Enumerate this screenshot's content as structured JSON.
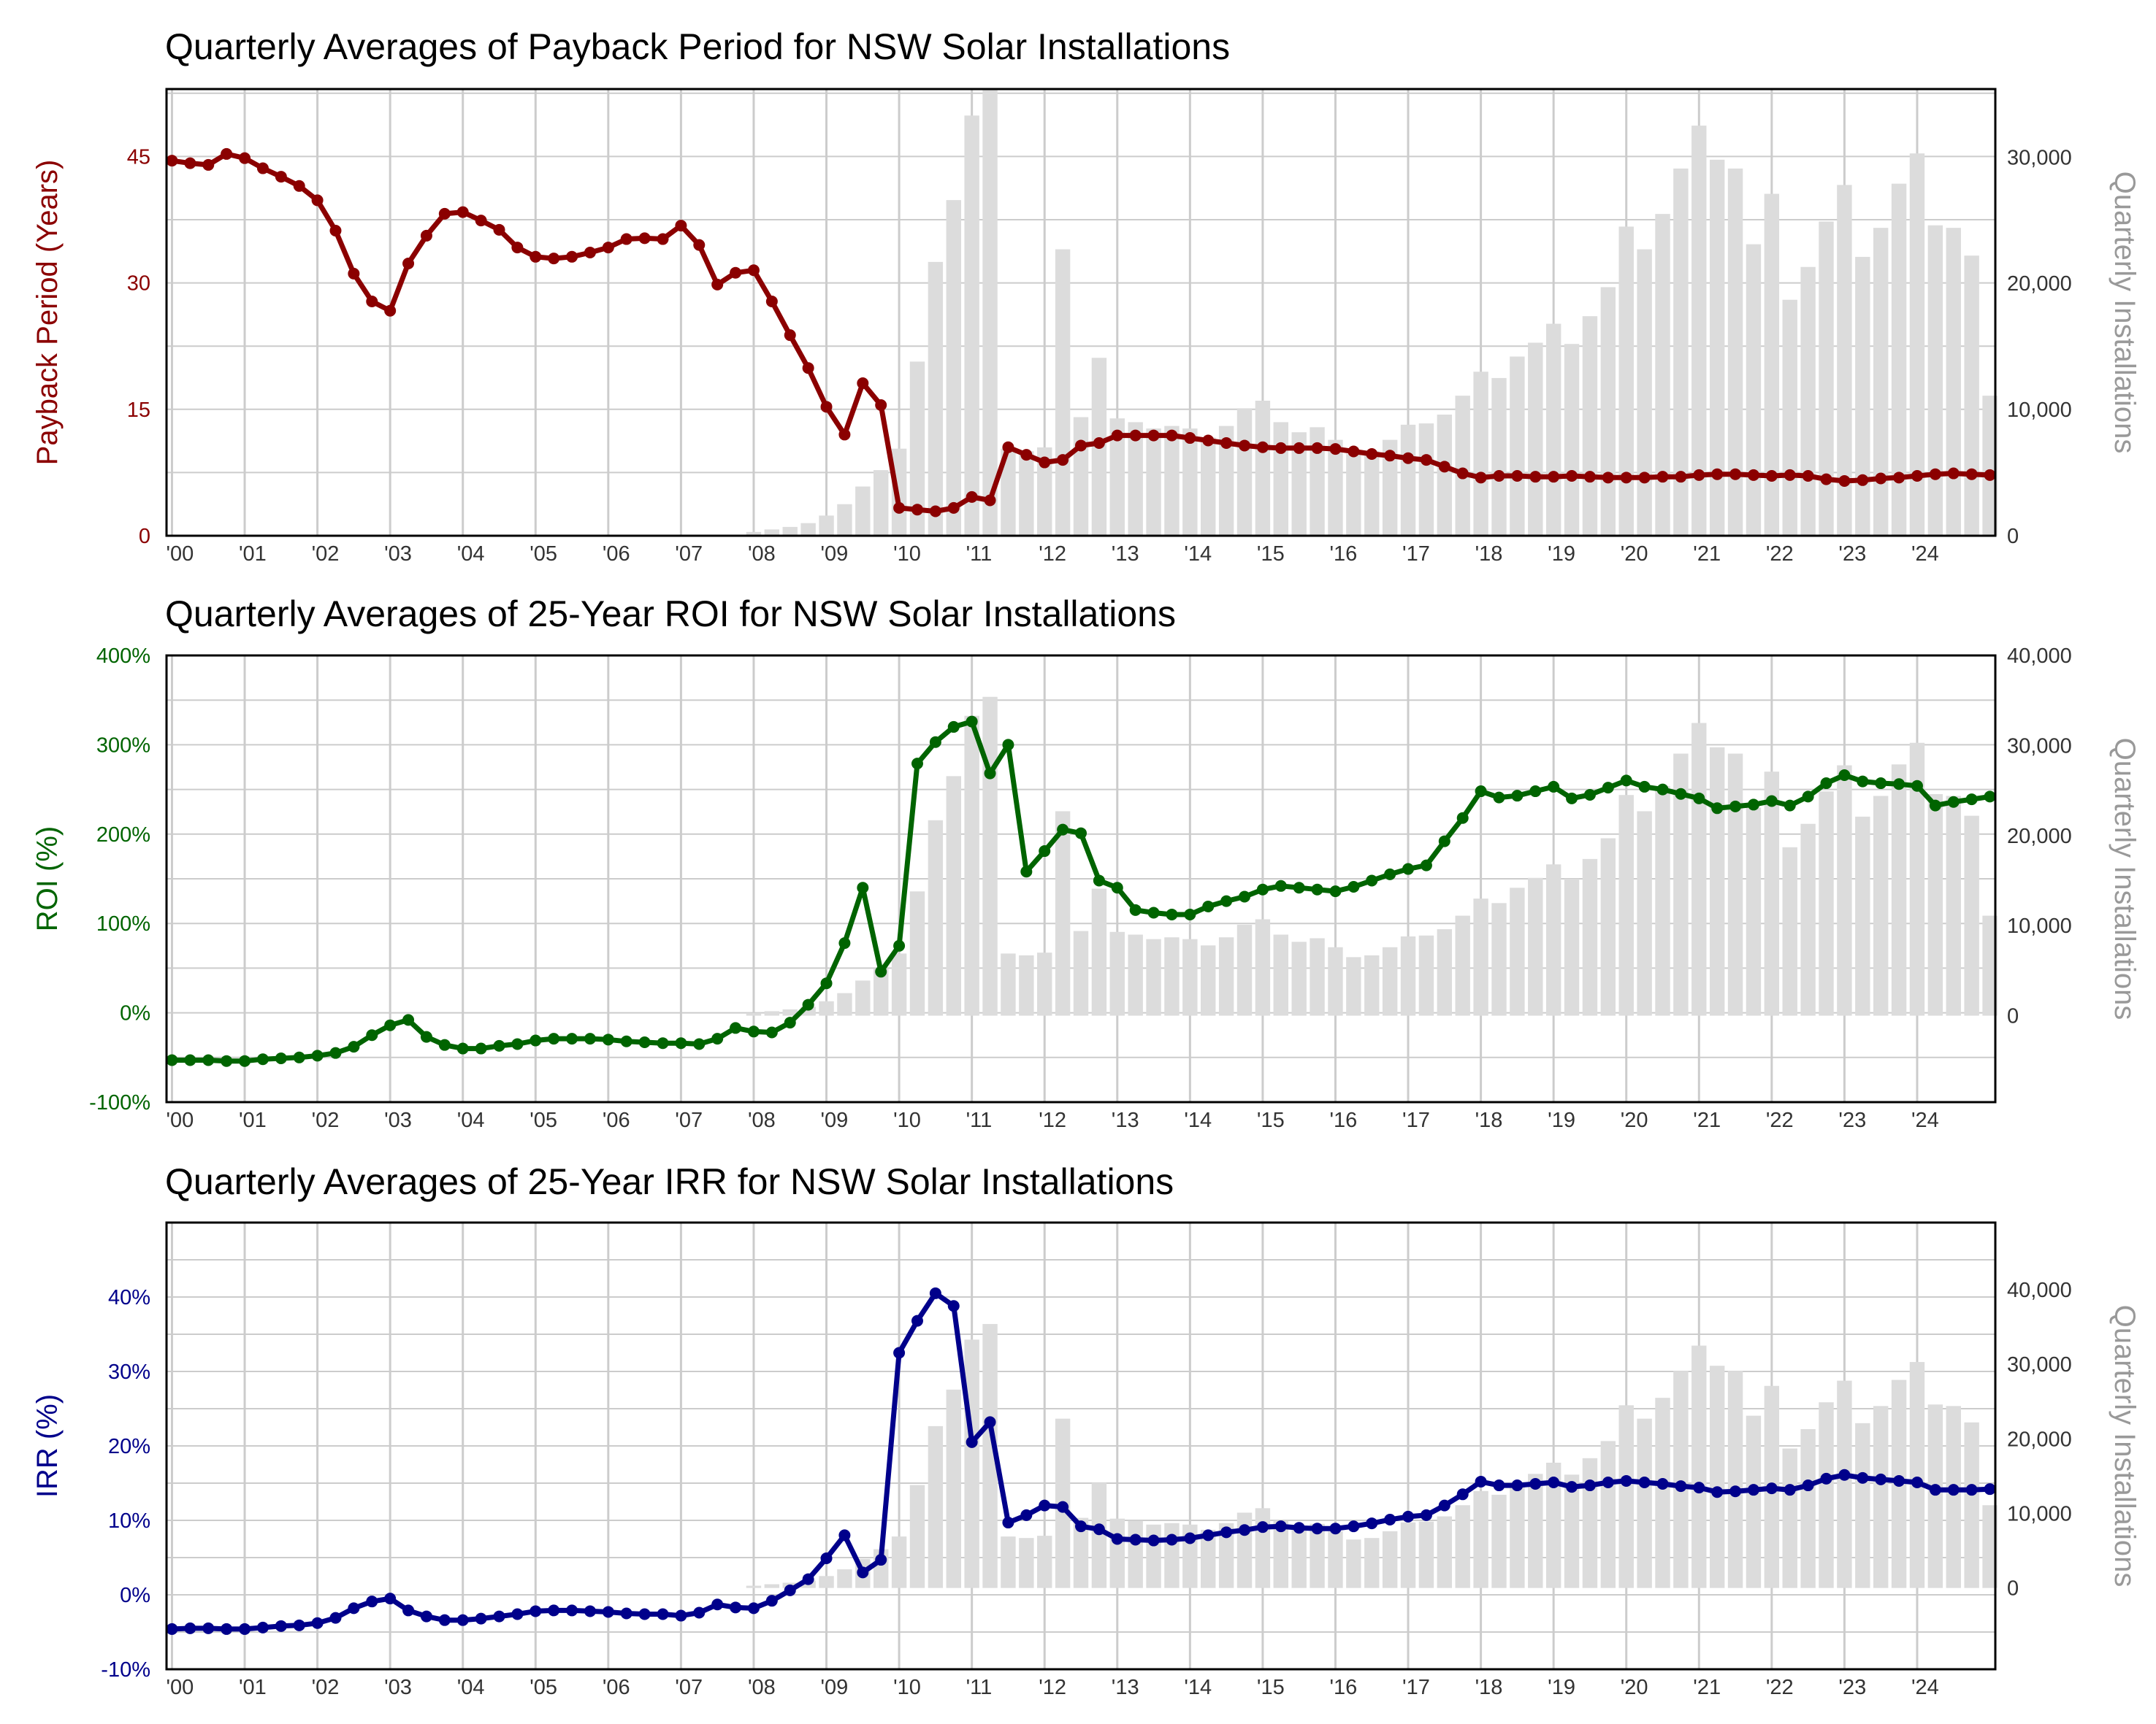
{
  "x_tick_labels": [
    "'00",
    "'01",
    "'02",
    "'03",
    "'04",
    "'05",
    "'06",
    "'07",
    "'08",
    "'09",
    "'10",
    "'11",
    "'12",
    "'13",
    "'14",
    "'15",
    "'16",
    "'17",
    "'18",
    "'19",
    "'20",
    "'21",
    "'22",
    "'23",
    "'24"
  ],
  "chart_data": [
    {
      "type": "line",
      "title": "Quarterly Averages of Payback Period for NSW Solar Installations",
      "ylabel": "Payback Period (Years)",
      "ylabel_right": "Quarterly Installations",
      "ylim": [
        0,
        53
      ],
      "y2lim": [
        0,
        35400
      ],
      "yticks": [
        0,
        15,
        30,
        45
      ],
      "ytick_labels": [
        "0",
        "15",
        "30",
        "45"
      ],
      "y2ticks": [
        0,
        10000,
        20000,
        30000
      ],
      "y2tick_labels": [
        "0",
        "10,000",
        "20,000",
        "30,000"
      ],
      "grid": true,
      "line_color": "#8b0000",
      "bar_color": "#dcdcdc",
      "series": [
        {
          "name": "Payback Period (Years)",
          "values": [
            44.5,
            44.2,
            44,
            45.3,
            44.8,
            43.6,
            42.6,
            41.5,
            39.8,
            36.2,
            31.1,
            27.8,
            26.7,
            32.3,
            35.6,
            38.2,
            38.4,
            37.4,
            36.3,
            34.2,
            33.1,
            32.9,
            33.1,
            33.6,
            34.2,
            35.2,
            35.3,
            35.2,
            36.8,
            34.5,
            29.8,
            31.2,
            31.5,
            27.8,
            23.8,
            19.9,
            15.3,
            12,
            18.1,
            15.5,
            3.3,
            3.1,
            2.9,
            3.3,
            4.6,
            4.2,
            10.5,
            9.6,
            8.7,
            9,
            10.7,
            11,
            11.9,
            11.9,
            11.9,
            11.9,
            11.6,
            11.3,
            11,
            10.7,
            10.5,
            10.4,
            10.4,
            10.4,
            10.3,
            10,
            9.7,
            9.5,
            9.2,
            9,
            8.2,
            7.4,
            6.9,
            7.1,
            7.1,
            7,
            7,
            7.1,
            7,
            6.9,
            6.9,
            6.9,
            7,
            7,
            7.2,
            7.3,
            7.3,
            7.2,
            7.1,
            7.2,
            7.1,
            6.7,
            6.5,
            6.6,
            6.8,
            6.9,
            7.1,
            7.3,
            7.4,
            7.3,
            7.2
          ]
        },
        {
          "name": "Quarterly Installations",
          "values": [
            0,
            0,
            0,
            0,
            0,
            0,
            0,
            0,
            0,
            0,
            0,
            0,
            0,
            0,
            0,
            0,
            0,
            0,
            0,
            0,
            0,
            0,
            0,
            0,
            0,
            0,
            0,
            0,
            0,
            0,
            0,
            0,
            300,
            500,
            700,
            1000,
            1600,
            2500,
            3900,
            5200,
            6900,
            13800,
            21700,
            26600,
            33300,
            35400,
            6900,
            6700,
            7000,
            22700,
            9400,
            14100,
            9300,
            9000,
            8500,
            8700,
            8500,
            7800,
            8700,
            10100,
            10700,
            9000,
            8200,
            8600,
            7600,
            6500,
            6700,
            7600,
            8800,
            8900,
            9600,
            11100,
            13000,
            12500,
            14200,
            15300,
            16800,
            15200,
            17400,
            19700,
            24500,
            22700,
            25500,
            29100,
            32500,
            29800,
            29100,
            23100,
            27100,
            18700,
            21300,
            24900,
            27800,
            22100,
            24400,
            27900,
            30300,
            24600,
            24400,
            22200,
            11100
          ]
        }
      ]
    },
    {
      "type": "line",
      "title": "Quarterly Averages of 25-Year ROI for NSW Solar Installations",
      "ylabel": "ROI (%)",
      "ylabel_right": "Quarterly Installations",
      "ylim": [
        -100,
        400
      ],
      "y2lim": [
        -9600,
        40000
      ],
      "yticks": [
        -100,
        0,
        100,
        200,
        300,
        400
      ],
      "ytick_labels": [
        "-100%",
        "0%",
        "100%",
        "200%",
        "300%",
        "400%"
      ],
      "y2ticks": [
        0,
        10000,
        20000,
        30000,
        40000
      ],
      "y2tick_labels": [
        "0",
        "10,000",
        "20,000",
        "30,000",
        "40,000"
      ],
      "grid": true,
      "line_color": "#006400",
      "bar_color": "#dcdcdc",
      "series": [
        {
          "name": "ROI (%)",
          "values": [
            -53,
            -53,
            -53,
            -54,
            -54,
            -52,
            -51,
            -50,
            -48,
            -45,
            -38,
            -25,
            -14,
            -8,
            -27,
            -36,
            -40,
            -40,
            -37,
            -35,
            -31,
            -29,
            -29,
            -29,
            -30,
            -32,
            -33,
            -34,
            -34,
            -35,
            -29,
            -17,
            -21,
            -22,
            -11,
            9,
            33,
            78,
            140,
            46,
            75,
            279,
            303,
            320,
            326,
            268,
            300,
            158,
            181,
            205,
            201,
            148,
            140,
            115,
            112,
            110,
            110,
            119,
            125,
            130,
            138,
            142,
            140,
            138,
            136,
            141,
            148,
            155,
            161,
            165,
            192,
            218,
            248,
            241,
            243,
            248,
            253,
            240,
            244,
            252,
            260,
            253,
            250,
            245,
            240,
            229,
            231,
            233,
            237,
            232,
            242,
            257,
            266,
            259,
            257,
            256,
            254,
            232,
            236,
            239,
            242
          ]
        },
        {
          "name": "Quarterly Installations",
          "values": [
            0,
            0,
            0,
            0,
            0,
            0,
            0,
            0,
            0,
            0,
            0,
            0,
            0,
            0,
            0,
            0,
            0,
            0,
            0,
            0,
            0,
            0,
            0,
            0,
            0,
            0,
            0,
            0,
            0,
            0,
            0,
            0,
            300,
            500,
            700,
            1000,
            1600,
            2500,
            3900,
            5200,
            6900,
            13800,
            21700,
            26600,
            33300,
            35400,
            6900,
            6700,
            7000,
            22700,
            9400,
            14100,
            9300,
            9000,
            8500,
            8700,
            8500,
            7800,
            8700,
            10100,
            10700,
            9000,
            8200,
            8600,
            7600,
            6500,
            6700,
            7600,
            8800,
            8900,
            9600,
            11100,
            13000,
            12500,
            14200,
            15300,
            16800,
            15200,
            17400,
            19700,
            24500,
            22700,
            25500,
            29100,
            32500,
            29800,
            29100,
            23100,
            27100,
            18700,
            21300,
            24900,
            27800,
            22100,
            24400,
            27900,
            30300,
            24600,
            24400,
            22200,
            11100
          ]
        }
      ]
    },
    {
      "type": "line",
      "title": "Quarterly Averages of 25-Year IRR for NSW Solar Installations",
      "ylabel": "IRR (%)",
      "ylabel_right": "Quarterly Installations",
      "ylim": [
        -10,
        50
      ],
      "y2lim": [
        -10900,
        49000
      ],
      "yticks": [
        -10,
        0,
        10,
        20,
        30,
        40
      ],
      "ytick_labels": [
        "-10%",
        "0%",
        "10%",
        "20%",
        "30%",
        "40%"
      ],
      "y2ticks": [
        0,
        10000,
        20000,
        30000,
        40000
      ],
      "y2tick_labels": [
        "0",
        "10,000",
        "20,000",
        "30,000",
        "40,000"
      ],
      "grid": true,
      "line_color": "#00008b",
      "bar_color": "#dcdcdc",
      "series": [
        {
          "name": "IRR (%)",
          "values": [
            -4.6,
            -4.5,
            -4.5,
            -4.6,
            -4.6,
            -4.4,
            -4.2,
            -4.1,
            -3.8,
            -3.1,
            -1.8,
            -0.9,
            -0.5,
            -2.1,
            -2.9,
            -3.4,
            -3.4,
            -3.2,
            -2.9,
            -2.6,
            -2.2,
            -2.1,
            -2.1,
            -2.2,
            -2.3,
            -2.5,
            -2.6,
            -2.6,
            -2.8,
            -2.4,
            -1.3,
            -1.7,
            -1.8,
            -0.8,
            0.6,
            2.1,
            4.9,
            8,
            3,
            4.7,
            32.5,
            36.8,
            40.5,
            38.8,
            20.5,
            23.2,
            9.7,
            10.7,
            12,
            11.8,
            9.2,
            8.8,
            7.5,
            7.4,
            7.3,
            7.4,
            7.6,
            8,
            8.4,
            8.7,
            9.1,
            9.2,
            9,
            8.9,
            8.9,
            9.2,
            9.6,
            10.1,
            10.5,
            10.7,
            12,
            13.5,
            15.2,
            14.7,
            14.7,
            14.9,
            15.1,
            14.5,
            14.7,
            15.1,
            15.3,
            15.1,
            14.9,
            14.6,
            14.4,
            13.8,
            13.9,
            14.1,
            14.3,
            14.1,
            14.7,
            15.6,
            16.1,
            15.7,
            15.5,
            15.3,
            15.1,
            14.1,
            14.1,
            14.1,
            14.2
          ]
        },
        {
          "name": "Quarterly Installations",
          "values": [
            0,
            0,
            0,
            0,
            0,
            0,
            0,
            0,
            0,
            0,
            0,
            0,
            0,
            0,
            0,
            0,
            0,
            0,
            0,
            0,
            0,
            0,
            0,
            0,
            0,
            0,
            0,
            0,
            0,
            0,
            0,
            0,
            300,
            500,
            700,
            1000,
            1600,
            2500,
            3900,
            5200,
            6900,
            13800,
            21700,
            26600,
            33300,
            35400,
            6900,
            6700,
            7000,
            22700,
            9400,
            14100,
            9300,
            9000,
            8500,
            8700,
            8500,
            7800,
            8700,
            10100,
            10700,
            9000,
            8200,
            8600,
            7600,
            6500,
            6700,
            7600,
            8800,
            8900,
            9600,
            11100,
            13000,
            12500,
            14200,
            15300,
            16800,
            15200,
            17400,
            19700,
            24500,
            22700,
            25500,
            29100,
            32500,
            29800,
            29100,
            23100,
            27100,
            18700,
            21300,
            24900,
            27800,
            22100,
            24400,
            27900,
            30300,
            24600,
            24400,
            22200,
            11100
          ]
        }
      ]
    }
  ]
}
